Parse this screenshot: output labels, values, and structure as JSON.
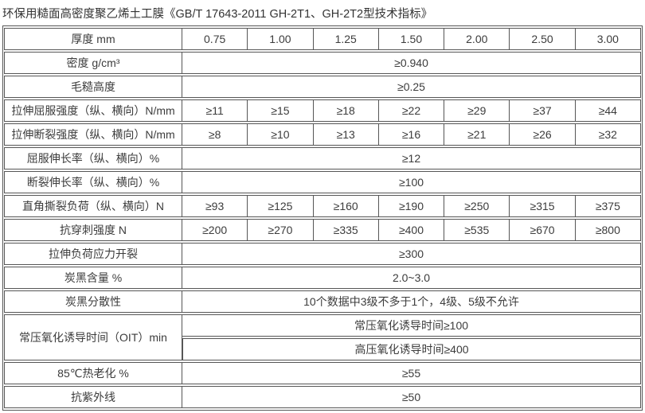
{
  "title": "环保用糙面高密度聚乙烯土工膜《GB/T 17643-2011 GH-2T1、GH-2T2型技术指标》",
  "table": {
    "rows": [
      {
        "label": "厚度 mm",
        "values": [
          "0.75",
          "1.00",
          "1.25",
          "1.50",
          "2.00",
          "2.50",
          "3.00"
        ]
      },
      {
        "label": "密度 g/cm³",
        "value": "≥0.940"
      },
      {
        "label": "毛糙高度",
        "value": "≥0.25"
      },
      {
        "label": "拉伸屈服强度（纵、横向）N/mm",
        "values": [
          "≥11",
          "≥15",
          "≥18",
          "≥22",
          "≥29",
          "≥37",
          "≥44"
        ]
      },
      {
        "label": "拉伸断裂强度（纵、横向）N/mm",
        "values": [
          "≥8",
          "≥10",
          "≥13",
          "≥16",
          "≥21",
          "≥26",
          "≥32"
        ]
      },
      {
        "label": "屈服伸长率（纵、横向）%",
        "value": "≥12"
      },
      {
        "label": "断裂伸长率（纵、横向）%",
        "value": "≥100"
      },
      {
        "label": "直角撕裂负荷（纵、横向）N",
        "values": [
          "≥93",
          "≥125",
          "≥160",
          "≥190",
          "≥250",
          "≥315",
          "≥375"
        ]
      },
      {
        "label": "抗穿刺强度 N",
        "values": [
          "≥200",
          "≥270",
          "≥335",
          "≥400",
          "≥535",
          "≥670",
          "≥800"
        ]
      },
      {
        "label": "拉伸负荷应力开裂",
        "value": "≥300"
      },
      {
        "label": "炭黑含量 %",
        "value": "2.0~3.0"
      },
      {
        "label": "炭黑分散性",
        "value": "10个数据中3级不多于1个，4级、5级不允许"
      },
      {
        "label": "常压氧化诱导时间（OIT）min",
        "sub": [
          "常压氧化诱导时间≥100",
          "高压氧化诱导时间≥400"
        ]
      },
      {
        "label": "85℃热老化 %",
        "value": "≥55"
      },
      {
        "label": "抗紫外线",
        "value": "≥50"
      }
    ]
  }
}
